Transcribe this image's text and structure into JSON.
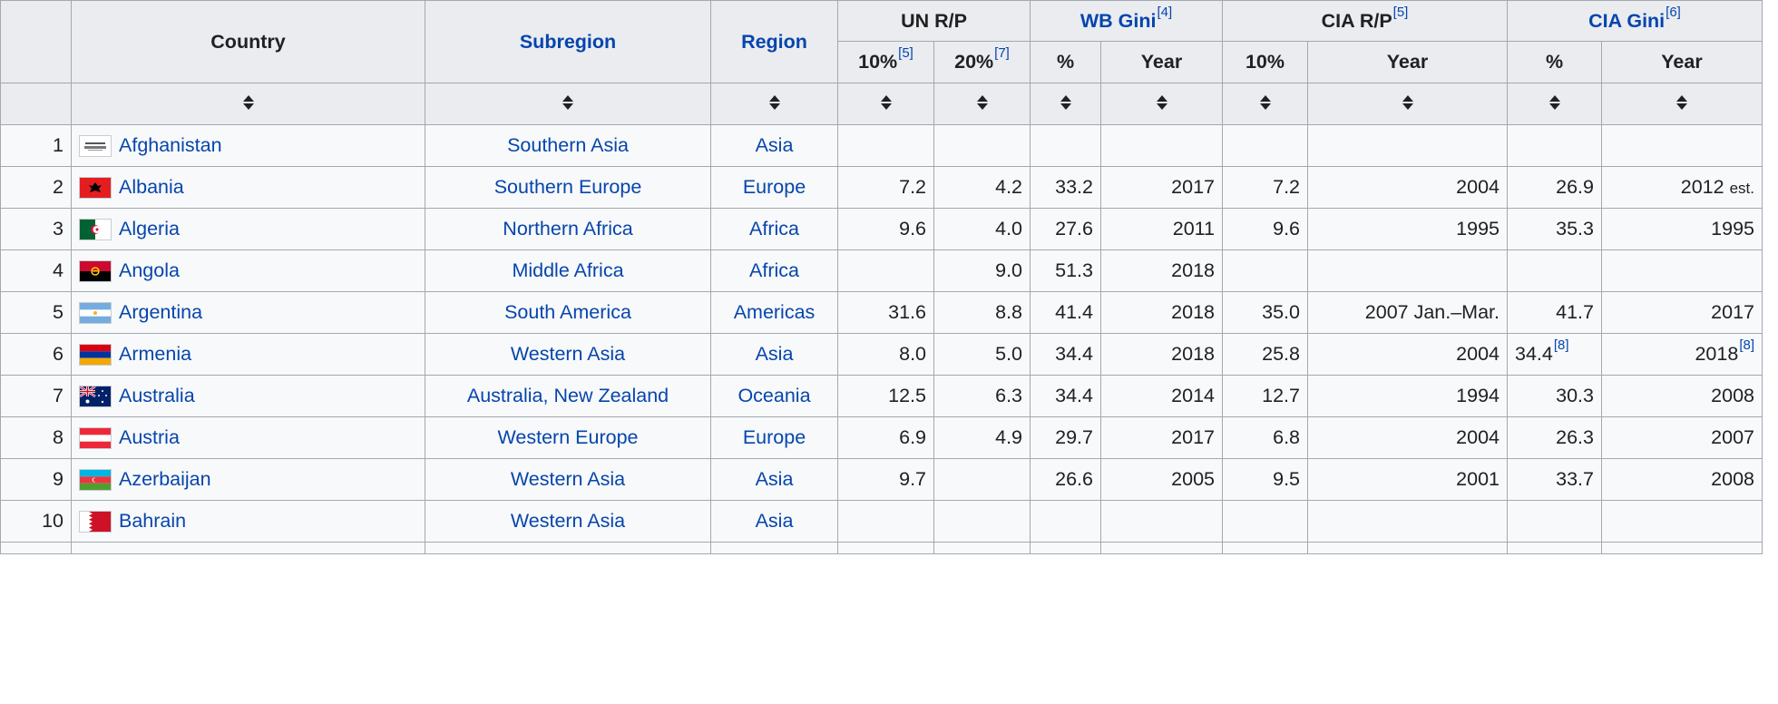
{
  "header": {
    "country": "Country",
    "subregion": "Subregion",
    "region": "Region",
    "un_rp": "UN R/P",
    "wb_gini": "WB Gini",
    "wb_gini_ref": "[4]",
    "cia_rp": "CIA R/P",
    "cia_rp_ref": "[5]",
    "cia_gini": "CIA Gini",
    "cia_gini_ref": "[6]",
    "un_10": "10%",
    "un_10_ref": "[5]",
    "un_20": "20%",
    "un_20_ref": "[7]",
    "wb_pct": "%",
    "wb_year": "Year",
    "cia_10": "10%",
    "cia_year": "Year",
    "ciag_pct": "%",
    "ciag_year": "Year"
  },
  "rows": [
    {
      "rank": "1",
      "country": "Afghanistan",
      "flag": "afghanistan-flag-icon",
      "subregion": "Southern Asia",
      "region": "Asia",
      "un10": "",
      "un20": "",
      "wbpct": "",
      "wbyear": "",
      "cia10": "",
      "ciayear": "",
      "cgpct": "",
      "cgpct_ref": "",
      "cgyear": "",
      "cgyear_ref": "",
      "cgyear_note": ""
    },
    {
      "rank": "2",
      "country": "Albania",
      "flag": "albania-flag-icon",
      "subregion": "Southern Europe",
      "region": "Europe",
      "un10": "7.2",
      "un20": "4.2",
      "wbpct": "33.2",
      "wbyear": "2017",
      "cia10": "7.2",
      "ciayear": "2004",
      "cgpct": "26.9",
      "cgpct_ref": "",
      "cgyear": "2012",
      "cgyear_ref": "",
      "cgyear_note": "est."
    },
    {
      "rank": "3",
      "country": "Algeria",
      "flag": "algeria-flag-icon",
      "subregion": "Northern Africa",
      "region": "Africa",
      "un10": "9.6",
      "un20": "4.0",
      "wbpct": "27.6",
      "wbyear": "2011",
      "cia10": "9.6",
      "ciayear": "1995",
      "cgpct": "35.3",
      "cgpct_ref": "",
      "cgyear": "1995",
      "cgyear_ref": "",
      "cgyear_note": ""
    },
    {
      "rank": "4",
      "country": "Angola",
      "flag": "angola-flag-icon",
      "subregion": "Middle Africa",
      "region": "Africa",
      "un10": "",
      "un20": "9.0",
      "wbpct": "51.3",
      "wbyear": "2018",
      "cia10": "",
      "ciayear": "",
      "cgpct": "",
      "cgpct_ref": "",
      "cgyear": "",
      "cgyear_ref": "",
      "cgyear_note": ""
    },
    {
      "rank": "5",
      "country": "Argentina",
      "flag": "argentina-flag-icon",
      "subregion": "South America",
      "region": "Americas",
      "un10": "31.6",
      "un20": "8.8",
      "wbpct": "41.4",
      "wbyear": "2018",
      "cia10": "35.0",
      "ciayear": "2007 Jan.–Mar.",
      "cgpct": "41.7",
      "cgpct_ref": "",
      "cgyear": "2017",
      "cgyear_ref": "",
      "cgyear_note": ""
    },
    {
      "rank": "6",
      "country": "Armenia",
      "flag": "armenia-flag-icon",
      "subregion": "Western Asia",
      "region": "Asia",
      "un10": "8.0",
      "un20": "5.0",
      "wbpct": "34.4",
      "wbyear": "2018",
      "cia10": "25.8",
      "ciayear": "2004",
      "cgpct": "34.4",
      "cgpct_ref": "[8]",
      "cgyear": "2018",
      "cgyear_ref": "[8]",
      "cgyear_note": ""
    },
    {
      "rank": "7",
      "country": "Australia",
      "flag": "australia-flag-icon",
      "subregion": "Australia, New Zealand",
      "region": "Oceania",
      "un10": "12.5",
      "un20": "6.3",
      "wbpct": "34.4",
      "wbyear": "2014",
      "cia10": "12.7",
      "ciayear": "1994",
      "cgpct": "30.3",
      "cgpct_ref": "",
      "cgyear": "2008",
      "cgyear_ref": "",
      "cgyear_note": ""
    },
    {
      "rank": "8",
      "country": "Austria",
      "flag": "austria-flag-icon",
      "subregion": "Western Europe",
      "region": "Europe",
      "un10": "6.9",
      "un20": "4.9",
      "wbpct": "29.7",
      "wbyear": "2017",
      "cia10": "6.8",
      "ciayear": "2004",
      "cgpct": "26.3",
      "cgpct_ref": "",
      "cgyear": "2007",
      "cgyear_ref": "",
      "cgyear_note": ""
    },
    {
      "rank": "9",
      "country": "Azerbaijan",
      "flag": "azerbaijan-flag-icon",
      "subregion": "Western Asia",
      "region": "Asia",
      "un10": "9.7",
      "un20": "",
      "wbpct": "26.6",
      "wbyear": "2005",
      "cia10": "9.5",
      "ciayear": "2001",
      "cgpct": "33.7",
      "cgpct_ref": "",
      "cgyear": "2008",
      "cgyear_ref": "",
      "cgyear_note": ""
    },
    {
      "rank": "10",
      "country": "Bahrain",
      "flag": "bahrain-flag-icon",
      "subregion": "Western Asia",
      "region": "Asia",
      "un10": "",
      "un20": "",
      "wbpct": "",
      "wbyear": "",
      "cia10": "",
      "ciayear": "",
      "cgpct": "",
      "cgpct_ref": "",
      "cgyear": "",
      "cgyear_ref": "",
      "cgyear_note": ""
    }
  ]
}
